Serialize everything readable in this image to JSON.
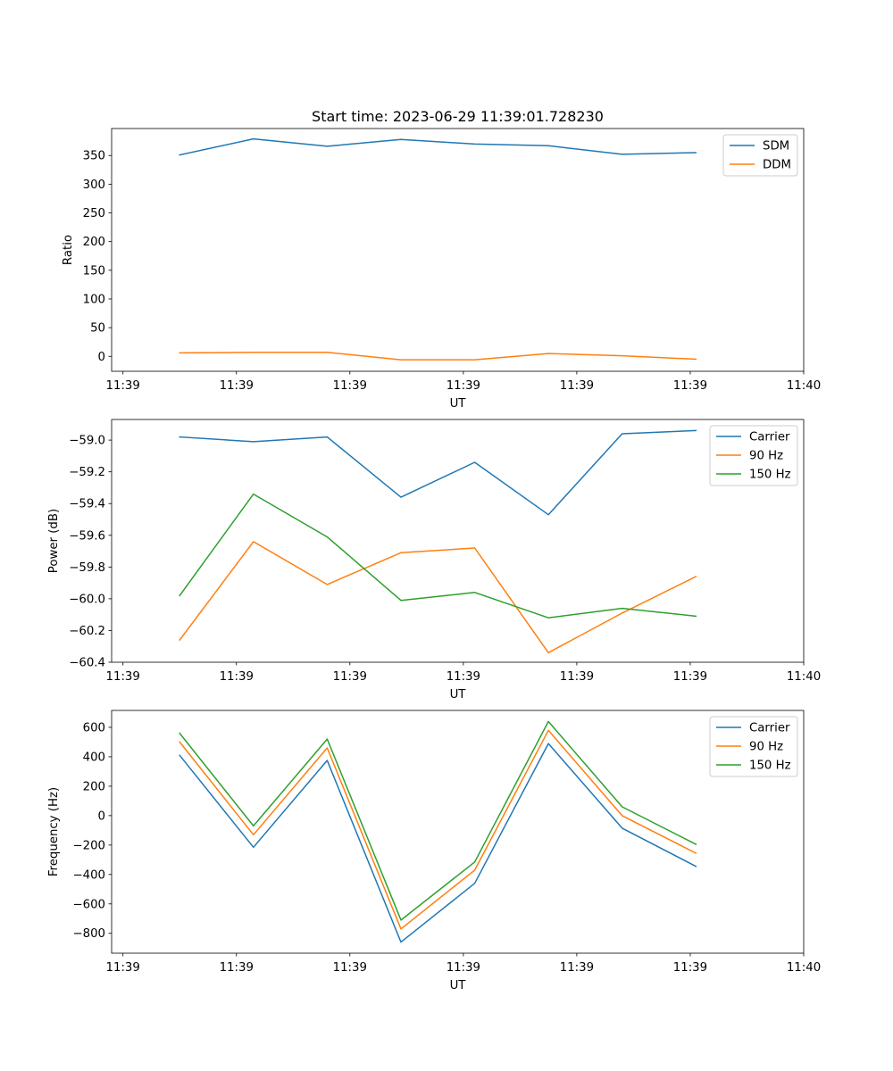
{
  "figure": {
    "title": "Start time: 2023-06-29 11:39:01.728230"
  },
  "chart_data": [
    {
      "type": "line",
      "title": "Start time: 2023-06-29 11:39:01.728230",
      "xlabel": "UT",
      "ylabel": "Ratio",
      "x": [
        0.5,
        1.15,
        1.8,
        2.45,
        3.1,
        3.75,
        4.4,
        5.05
      ],
      "x_ticks": [
        0,
        1,
        2,
        3,
        4,
        5,
        6
      ],
      "x_tick_labels": [
        "11:39",
        "11:39",
        "11:39",
        "11:39",
        "11:39",
        "11:39",
        "11:40"
      ],
      "xlim": [
        -0.1,
        6.0
      ],
      "ylim": [
        -26,
        397
      ],
      "y_ticks": [
        0,
        50,
        100,
        150,
        200,
        250,
        300,
        350
      ],
      "y_tick_labels": [
        "0",
        "50",
        "100",
        "150",
        "200",
        "250",
        "300",
        "350"
      ],
      "grid": false,
      "legend_position": "upper-right",
      "series": [
        {
          "name": "SDM",
          "color": "#1f77b4",
          "values": [
            351,
            379,
            366,
            378,
            370,
            367,
            352,
            355
          ]
        },
        {
          "name": "DDM",
          "color": "#ff7f0e",
          "values": [
            6,
            7,
            7,
            -6,
            -6,
            5,
            1,
            -5
          ]
        }
      ]
    },
    {
      "type": "line",
      "title": "",
      "xlabel": "UT",
      "ylabel": "Power (dB)",
      "x": [
        0.5,
        1.15,
        1.8,
        2.45,
        3.1,
        3.75,
        4.4,
        5.05
      ],
      "x_ticks": [
        0,
        1,
        2,
        3,
        4,
        5,
        6
      ],
      "x_tick_labels": [
        "11:39",
        "11:39",
        "11:39",
        "11:39",
        "11:39",
        "11:39",
        "11:40"
      ],
      "xlim": [
        -0.1,
        6.0
      ],
      "ylim": [
        -60.4,
        -58.87
      ],
      "y_ticks": [
        -60.4,
        -60.2,
        -60.0,
        -59.8,
        -59.6,
        -59.4,
        -59.2,
        -59.0
      ],
      "y_tick_labels": [
        "−60.4",
        "−60.2",
        "−60.0",
        "−59.8",
        "−59.6",
        "−59.4",
        "−59.2",
        "−59.0"
      ],
      "grid": false,
      "legend_position": "upper-right",
      "series": [
        {
          "name": "Carrier",
          "color": "#1f77b4",
          "values": [
            -58.98,
            -59.01,
            -58.98,
            -59.36,
            -59.14,
            -59.47,
            -58.96,
            -58.94
          ]
        },
        {
          "name": "90 Hz",
          "color": "#ff7f0e",
          "values": [
            -60.26,
            -59.64,
            -59.91,
            -59.71,
            -59.68,
            -60.34,
            -60.09,
            -59.86
          ]
        },
        {
          "name": "150 Hz",
          "color": "#2ca02c",
          "values": [
            -59.98,
            -59.34,
            -59.61,
            -60.01,
            -59.96,
            -60.12,
            -60.06,
            -60.11
          ]
        }
      ]
    },
    {
      "type": "line",
      "title": "",
      "xlabel": "UT",
      "ylabel": "Frequency (Hz)",
      "x": [
        0.5,
        1.15,
        1.8,
        2.45,
        3.1,
        3.75,
        4.4,
        5.05
      ],
      "x_ticks": [
        0,
        1,
        2,
        3,
        4,
        5,
        6
      ],
      "x_tick_labels": [
        "11:39",
        "11:39",
        "11:39",
        "11:39",
        "11:39",
        "11:39",
        "11:40"
      ],
      "xlim": [
        -0.1,
        6.0
      ],
      "ylim": [
        -935,
        715
      ],
      "y_ticks": [
        -800,
        -600,
        -400,
        -200,
        0,
        200,
        400,
        600
      ],
      "y_tick_labels": [
        "−800",
        "−600",
        "−400",
        "−200",
        "0",
        "200",
        "400",
        "600"
      ],
      "grid": false,
      "legend_position": "upper-right",
      "series": [
        {
          "name": "Carrier",
          "color": "#1f77b4",
          "values": [
            410,
            -215,
            375,
            -860,
            -460,
            490,
            -85,
            -345
          ]
        },
        {
          "name": "90 Hz",
          "color": "#ff7f0e",
          "values": [
            500,
            -130,
            460,
            -770,
            -370,
            580,
            0,
            -255
          ]
        },
        {
          "name": "150 Hz",
          "color": "#2ca02c",
          "values": [
            560,
            -70,
            520,
            -710,
            -315,
            640,
            60,
            -195
          ]
        }
      ]
    }
  ]
}
